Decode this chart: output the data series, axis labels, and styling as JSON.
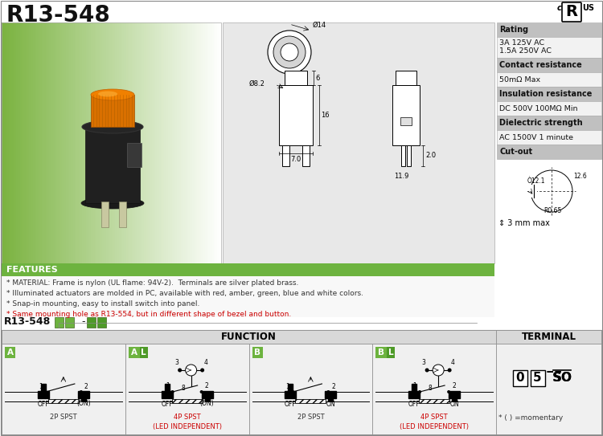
{
  "title": "R13-548",
  "bg_color": "#ffffff",
  "green_header_color": "#6db33f",
  "gray_header_color": "#c0c0c0",
  "rating_rows": [
    {
      "text": "Rating",
      "header": true
    },
    {
      "text": "3A 125V AC\n1.5A 250V AC",
      "header": false
    },
    {
      "text": "Contact resistance",
      "header": true
    },
    {
      "text": "50mΩ Max",
      "header": false
    },
    {
      "text": "Insulation resistance",
      "header": true
    },
    {
      "text": "DC 500V 100MΩ Min",
      "header": false
    },
    {
      "text": "Dielectric strength",
      "header": true
    },
    {
      "text": "AC 1500V 1 minute",
      "header": false
    },
    {
      "text": "Cut-out",
      "header": true
    }
  ],
  "features_title": "FEATURES",
  "features_text": [
    "* MATERIAL: Frame is nylon (UL flame: 94V-2).  Terminals are silver plated brass.",
    "* Illuminated actuators are molded in PC, available with red, amber, green, blue and white colors.",
    "* Snap-in mounting, easy to install switch into panel.",
    "* Same mounting hole as R13-554, but in different shape of bezel and button."
  ],
  "dim_top_d": "Ø14",
  "dim_phi82": "Ø8.2",
  "dim_6": "6",
  "dim_16": "16",
  "dim_70": "7.0",
  "dim_119": "11.9",
  "dim_20": "2.0",
  "cutout_phi121": "Ò12.1",
  "cutout_126": "12.6",
  "cutout_r065": "R0.65",
  "cutout_depth": "3 mm max",
  "function_title": "FUNCTION",
  "terminal_title": "TERMINAL",
  "red_color": "#cc0000",
  "dark_gray": "#333333",
  "green1": "#6db33f",
  "green2": "#4e9a28",
  "photo_green_dark": "#7ab840",
  "photo_green_light": "#c8e8a0"
}
